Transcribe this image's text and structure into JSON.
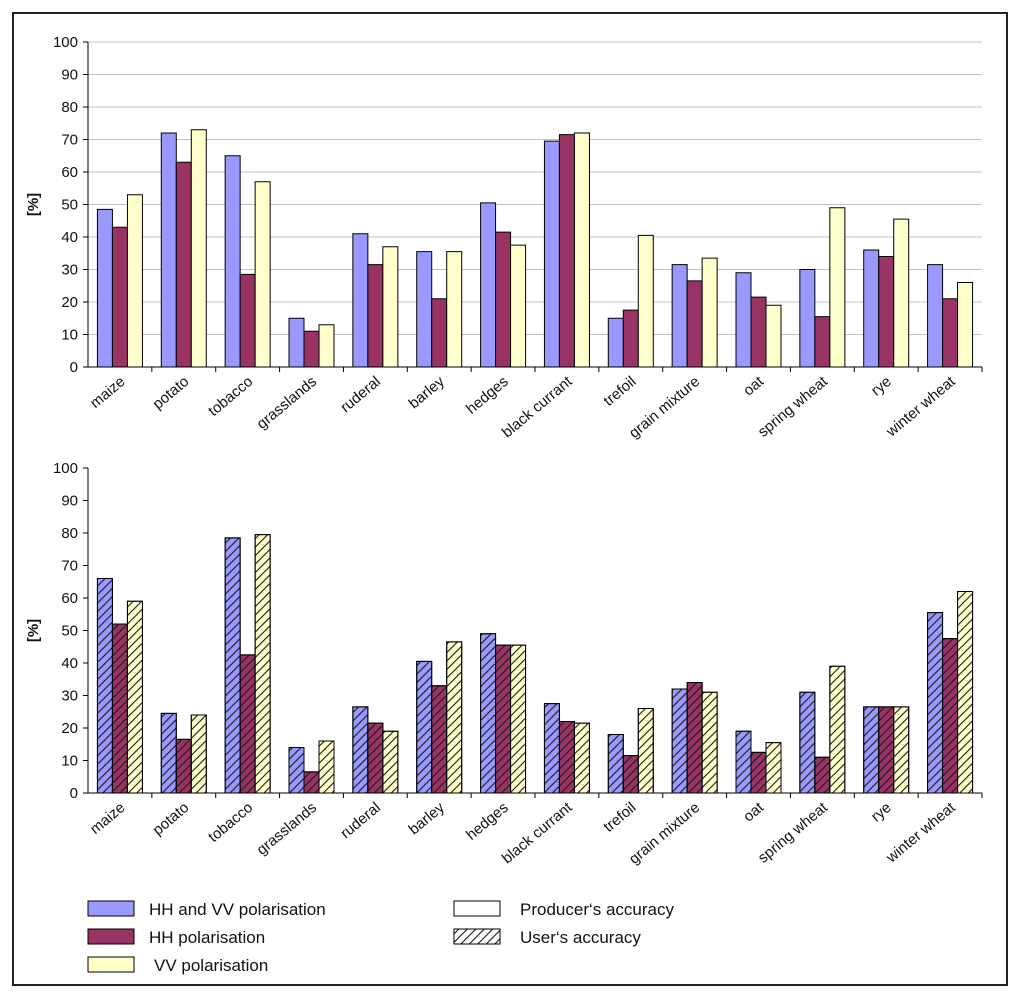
{
  "colors": {
    "hh_vv": "#9999ff",
    "hh": "#993366",
    "vv": "#ffffcc",
    "grid": "#c0c0c0",
    "axis": "#000000"
  },
  "legend": {
    "items": [
      {
        "label": "HH and VV polarisation",
        "color": "#9999ff"
      },
      {
        "label": "HH polarisation",
        "color": "#993366"
      },
      {
        "label": "VV polarisation",
        "color": "#ffffcc"
      }
    ],
    "pattern_items": [
      {
        "label": "Producer‘s accuracy",
        "pattern": "plain"
      },
      {
        "label": "User‘s accuracy",
        "pattern": "hatched"
      }
    ]
  },
  "chart_data": [
    {
      "type": "bar",
      "ylabel": "[%]",
      "ylim": [
        0,
        100
      ],
      "yticks": [
        0,
        10,
        20,
        30,
        40,
        50,
        60,
        70,
        80,
        90,
        100
      ],
      "grid": true,
      "hatched": false,
      "categories": [
        "maize",
        "potato",
        "tobacco",
        "grasslands",
        "ruderal",
        "barley",
        "hedges",
        "black currant",
        "trefoil",
        "grain mixture",
        "oat",
        "spring wheat",
        "rye",
        "winter wheat"
      ],
      "series": [
        {
          "name": "HH and VV polarisation",
          "values": [
            48.5,
            72,
            65,
            15,
            41,
            35.5,
            50.5,
            69.5,
            15,
            31.5,
            29,
            30,
            36,
            31.5
          ]
        },
        {
          "name": "HH polarisation",
          "values": [
            43,
            63,
            28.5,
            11,
            31.5,
            21,
            41.5,
            71.5,
            17.5,
            26.5,
            21.5,
            15.5,
            34,
            21
          ]
        },
        {
          "name": "VV polarisation",
          "values": [
            53,
            73,
            57,
            13,
            37,
            35.5,
            37.5,
            72,
            40.5,
            33.5,
            19,
            49,
            45.5,
            26
          ]
        }
      ]
    },
    {
      "type": "bar",
      "ylabel": "[%]",
      "ylim": [
        0,
        100
      ],
      "yticks": [
        0,
        10,
        20,
        30,
        40,
        50,
        60,
        70,
        80,
        90,
        100
      ],
      "grid": false,
      "hatched": true,
      "categories": [
        "maize",
        "potato",
        "tobacco",
        "grasslands",
        "ruderal",
        "barley",
        "hedges",
        "black currant",
        "trefoil",
        "grain mixture",
        "oat",
        "spring wheat",
        "rye",
        "winter wheat"
      ],
      "series": [
        {
          "name": "HH and VV polarisation",
          "values": [
            66,
            24.5,
            78.5,
            14,
            26.5,
            40.5,
            49,
            27.5,
            18,
            32,
            19,
            31,
            26.5,
            55.5
          ]
        },
        {
          "name": "HH polarisation",
          "values": [
            52,
            16.5,
            42.5,
            6.5,
            21.5,
            33,
            45.5,
            22,
            11.5,
            34,
            12.5,
            11,
            26.5,
            47.5
          ]
        },
        {
          "name": "VV polarisation",
          "values": [
            59,
            24,
            79.5,
            16,
            19,
            46.5,
            45.5,
            21.5,
            26,
            31,
            15.5,
            39,
            26.5,
            62
          ]
        }
      ]
    }
  ]
}
